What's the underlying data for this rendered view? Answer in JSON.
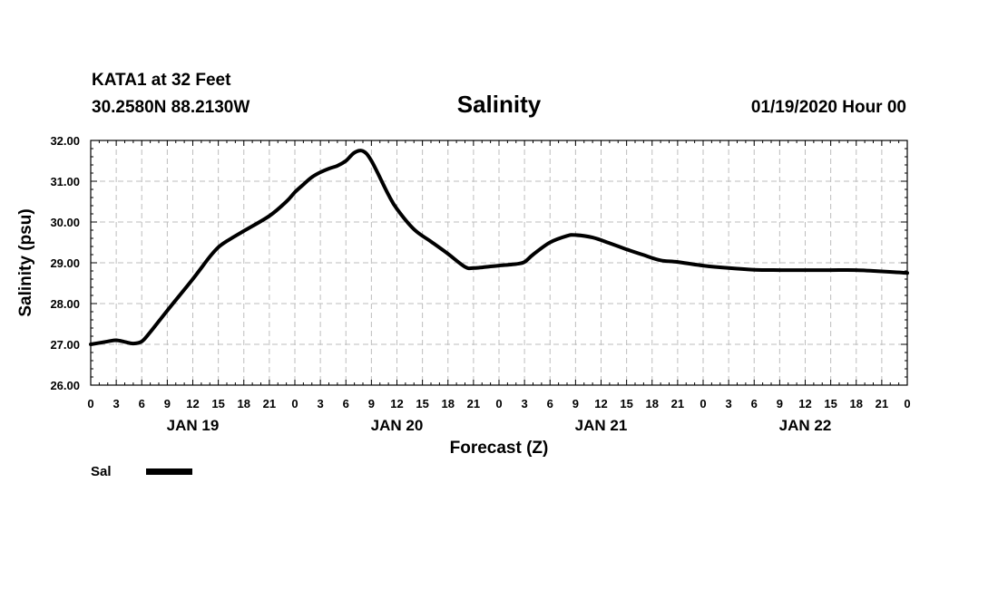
{
  "header": {
    "station": "KATA1 at 32 Feet",
    "coords": "30.2580N 88.2130W",
    "title": "Salinity",
    "datetime": "01/19/2020 Hour 00"
  },
  "legend": {
    "label": "Sal"
  },
  "chart_data": {
    "type": "line",
    "title": "Salinity",
    "xlabel": "Forecast (Z)",
    "ylabel": "Salinity (psu)",
    "xlim": [
      0,
      96
    ],
    "ylim": [
      26,
      32
    ],
    "yticks": [
      "26.00",
      "27.00",
      "28.00",
      "29.00",
      "30.00",
      "31.00",
      "32.00"
    ],
    "xtick_labels": [
      "0",
      "3",
      "6",
      "9",
      "12",
      "15",
      "18",
      "21",
      "0",
      "3",
      "6",
      "9",
      "12",
      "15",
      "18",
      "21",
      "0",
      "3",
      "6",
      "9",
      "12",
      "15",
      "18",
      "21",
      "0",
      "3",
      "6",
      "9",
      "12",
      "15",
      "18",
      "21",
      "0"
    ],
    "day_labels": [
      {
        "label": "JAN 19",
        "hour": 12
      },
      {
        "label": "JAN 20",
        "hour": 36
      },
      {
        "label": "JAN 21",
        "hour": 60
      },
      {
        "label": "JAN 22",
        "hour": 84
      }
    ],
    "grid": true,
    "legend_position": "bottom-left",
    "series": [
      {
        "name": "Sal",
        "color": "#000000",
        "x": [
          0,
          2,
          3,
          4,
          5,
          6,
          7,
          9,
          12,
          14,
          15,
          16,
          18,
          21,
          23,
          24,
          25,
          26,
          27,
          28,
          29,
          30,
          31,
          32,
          33,
          35,
          36,
          38,
          40,
          42,
          44,
          45,
          47,
          48,
          50,
          51,
          52,
          54,
          56,
          57,
          59,
          61,
          63,
          65,
          67,
          69,
          72,
          75,
          78,
          81,
          84,
          87,
          90,
          93,
          96
        ],
        "values": [
          27.0,
          27.07,
          27.1,
          27.06,
          27.02,
          27.07,
          27.3,
          27.83,
          28.6,
          29.15,
          29.38,
          29.53,
          29.78,
          30.15,
          30.5,
          30.73,
          30.92,
          31.1,
          31.22,
          31.31,
          31.38,
          31.5,
          31.7,
          31.74,
          31.5,
          30.67,
          30.32,
          29.82,
          29.52,
          29.22,
          28.9,
          28.87,
          28.91,
          28.93,
          28.97,
          29.02,
          29.2,
          29.5,
          29.66,
          29.68,
          29.62,
          29.48,
          29.33,
          29.19,
          29.06,
          29.02,
          28.93,
          28.87,
          28.83,
          28.82,
          28.82,
          28.82,
          28.82,
          28.79,
          28.75
        ]
      }
    ]
  }
}
